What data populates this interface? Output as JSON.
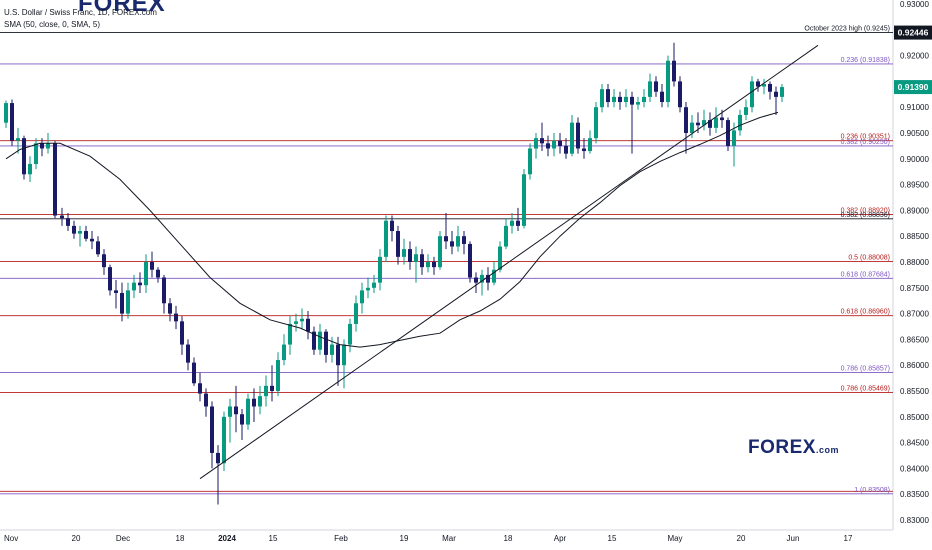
{
  "header": {
    "symbol_line": "U.S. Dollar / Swiss Franc, 1D, FOREX.com",
    "indicator_line": "SMA (50, close, 0, SMA, 5)"
  },
  "logo": {
    "brand": "FOREX",
    "suffix": ".com"
  },
  "colors": {
    "up": "#089981",
    "down": "#1a1a66",
    "price_badge": "#089981",
    "high_badge": "#131722"
  },
  "chart_data": {
    "type": "candlestick",
    "symbol": "USD/CHF",
    "timeframe": "1D",
    "x_tick_labels": [
      "Nov",
      "20",
      "Dec",
      "18",
      "2024",
      "15",
      "Feb",
      "19",
      "Mar",
      "18",
      "Apr",
      "15",
      "May",
      "20",
      "Jun",
      "17"
    ],
    "y_tick_labels": [
      "0.93000",
      "0.92000",
      "0.91000",
      "0.90500",
      "0.90000",
      "0.89500",
      "0.89000",
      "0.88500",
      "0.88000",
      "0.87500",
      "0.87000",
      "0.86500",
      "0.86000",
      "0.85500",
      "0.85000",
      "0.84500",
      "0.84000",
      "0.83500",
      "0.83000"
    ],
    "ylim": [
      0.8295,
      0.9317
    ],
    "y_ticks": [
      0.93,
      0.92,
      0.91,
      0.905,
      0.9,
      0.895,
      0.89,
      0.885,
      0.88,
      0.875,
      0.87,
      0.865,
      0.86,
      0.855,
      0.85,
      0.845,
      0.84,
      0.835,
      0.83
    ],
    "current_price": "0.91390",
    "current_price_value": 0.9139,
    "high_badge": "0.92446",
    "high_badge_value": 0.92446,
    "levels": [
      {
        "label": "October 2023 high (0.9245)",
        "value": 0.92446,
        "color": "#131722"
      },
      {
        "label": "0.236 (0.91838)",
        "value": 0.91838,
        "color": "#7e57c2"
      },
      {
        "label": "0.236 (0.90351)",
        "value": 0.90351,
        "color": "#b71c1c"
      },
      {
        "label": "0.382 (0.90250)",
        "value": 0.9025,
        "color": "#7e57c2"
      },
      {
        "label": "0.382 (0.88920)",
        "value": 0.8892,
        "color": "#b71c1c"
      },
      {
        "label": "0.382 (0.88836)",
        "value": 0.88836,
        "color": "#131722"
      },
      {
        "label": "0.5 (0.88008)",
        "value": 0.88008,
        "color": "#b71c1c"
      },
      {
        "label": "0.618 (0.87684)",
        "value": 0.87684,
        "color": "#7e57c2"
      },
      {
        "label": "0.618 (0.86960)",
        "value": 0.8696,
        "color": "#b71c1c"
      },
      {
        "label": "0.786 (0.85857)",
        "value": 0.85857,
        "color": "#7e57c2"
      },
      {
        "label": "0.786 (0.85469)",
        "value": 0.85469,
        "color": "#b71c1c"
      },
      {
        "label": "1 (0.83508)",
        "value": 0.83508,
        "color": "#7e57c2"
      },
      {
        "label": "",
        "value": 0.83555,
        "color": "#b71c1c"
      }
    ],
    "sma_50": [
      [
        6,
        0.9
      ],
      [
        20,
        0.9018
      ],
      [
        40,
        0.903
      ],
      [
        60,
        0.903
      ],
      [
        90,
        0.9005
      ],
      [
        120,
        0.896
      ],
      [
        150,
        0.89
      ],
      [
        180,
        0.8835
      ],
      [
        210,
        0.877
      ],
      [
        240,
        0.872
      ],
      [
        270,
        0.8688
      ],
      [
        300,
        0.8672
      ],
      [
        320,
        0.8655
      ],
      [
        340,
        0.864
      ],
      [
        360,
        0.8635
      ],
      [
        380,
        0.864
      ],
      [
        400,
        0.8648
      ],
      [
        420,
        0.8656
      ],
      [
        440,
        0.8662
      ],
      [
        460,
        0.8688
      ],
      [
        480,
        0.8705
      ],
      [
        500,
        0.8728
      ],
      [
        520,
        0.8762
      ],
      [
        540,
        0.881
      ],
      [
        560,
        0.885
      ],
      [
        580,
        0.8885
      ],
      [
        600,
        0.8915
      ],
      [
        620,
        0.8948
      ],
      [
        640,
        0.8975
      ],
      [
        660,
        0.8995
      ],
      [
        680,
        0.9012
      ],
      [
        700,
        0.9028
      ],
      [
        720,
        0.9045
      ],
      [
        740,
        0.9065
      ],
      [
        760,
        0.908
      ],
      [
        778,
        0.909
      ]
    ],
    "trendline": [
      [
        200,
        0.838
      ],
      [
        818,
        0.922
      ]
    ],
    "candles": [
      [
        6,
        0.907,
        0.9108,
        0.9113,
        0.906
      ],
      [
        12,
        0.9108,
        0.9035,
        0.9115,
        0.9025
      ],
      [
        18,
        0.9035,
        0.904,
        0.906,
        0.901
      ],
      [
        24,
        0.904,
        0.897,
        0.9045,
        0.896
      ],
      [
        30,
        0.897,
        0.899,
        0.9005,
        0.8955
      ],
      [
        36,
        0.899,
        0.903,
        0.904,
        0.898
      ],
      [
        42,
        0.903,
        0.902,
        0.904,
        0.9005
      ],
      [
        48,
        0.902,
        0.903,
        0.905,
        0.901
      ],
      [
        55,
        0.903,
        0.889,
        0.9035,
        0.8885
      ],
      [
        62,
        0.889,
        0.8885,
        0.8905,
        0.887
      ],
      [
        68,
        0.8885,
        0.887,
        0.8895,
        0.886
      ],
      [
        74,
        0.887,
        0.8855,
        0.888,
        0.8845
      ],
      [
        80,
        0.8855,
        0.886,
        0.887,
        0.883
      ],
      [
        86,
        0.886,
        0.8845,
        0.887,
        0.884
      ],
      [
        92,
        0.8845,
        0.884,
        0.886,
        0.8825
      ],
      [
        98,
        0.884,
        0.8815,
        0.885,
        0.881
      ],
      [
        104,
        0.8815,
        0.879,
        0.8825,
        0.8775
      ],
      [
        110,
        0.879,
        0.8745,
        0.8795,
        0.8735
      ],
      [
        116,
        0.8745,
        0.874,
        0.8765,
        0.871
      ],
      [
        122,
        0.874,
        0.87,
        0.876,
        0.8685
      ],
      [
        128,
        0.87,
        0.8745,
        0.876,
        0.869
      ],
      [
        134,
        0.8745,
        0.876,
        0.8775,
        0.873
      ],
      [
        140,
        0.876,
        0.8755,
        0.878,
        0.874
      ],
      [
        146,
        0.8755,
        0.88,
        0.8815,
        0.874
      ],
      [
        152,
        0.88,
        0.8785,
        0.882,
        0.877
      ],
      [
        158,
        0.8785,
        0.877,
        0.879,
        0.876
      ],
      [
        164,
        0.877,
        0.872,
        0.8775,
        0.87
      ],
      [
        170,
        0.872,
        0.87,
        0.873,
        0.8685
      ],
      [
        176,
        0.87,
        0.8685,
        0.8715,
        0.867
      ],
      [
        182,
        0.8685,
        0.864,
        0.8695,
        0.862
      ],
      [
        188,
        0.864,
        0.8605,
        0.865,
        0.859
      ],
      [
        194,
        0.8605,
        0.8565,
        0.8615,
        0.856
      ],
      [
        200,
        0.8565,
        0.8545,
        0.8585,
        0.853
      ],
      [
        206,
        0.8545,
        0.852,
        0.8555,
        0.85
      ],
      [
        212,
        0.852,
        0.843,
        0.853,
        0.84
      ],
      [
        218,
        0.843,
        0.841,
        0.8445,
        0.833
      ],
      [
        224,
        0.841,
        0.85,
        0.851,
        0.8395
      ],
      [
        230,
        0.85,
        0.852,
        0.8535,
        0.845
      ],
      [
        236,
        0.852,
        0.8505,
        0.856,
        0.847
      ],
      [
        242,
        0.8505,
        0.8485,
        0.8515,
        0.8455
      ],
      [
        248,
        0.8485,
        0.8535,
        0.8545,
        0.8475
      ],
      [
        254,
        0.8535,
        0.852,
        0.8555,
        0.849
      ],
      [
        260,
        0.852,
        0.854,
        0.856,
        0.8505
      ],
      [
        266,
        0.854,
        0.856,
        0.858,
        0.852
      ],
      [
        272,
        0.856,
        0.855,
        0.86,
        0.853
      ],
      [
        278,
        0.855,
        0.861,
        0.8625,
        0.854
      ],
      [
        284,
        0.861,
        0.864,
        0.866,
        0.86
      ],
      [
        290,
        0.864,
        0.868,
        0.8695,
        0.862
      ],
      [
        296,
        0.868,
        0.8685,
        0.87,
        0.8665
      ],
      [
        302,
        0.8685,
        0.869,
        0.871,
        0.867
      ],
      [
        308,
        0.869,
        0.8665,
        0.8705,
        0.865
      ],
      [
        314,
        0.8665,
        0.863,
        0.8675,
        0.862
      ],
      [
        320,
        0.863,
        0.8665,
        0.868,
        0.862
      ],
      [
        326,
        0.8665,
        0.862,
        0.867,
        0.8605
      ],
      [
        332,
        0.862,
        0.864,
        0.8655,
        0.8605
      ],
      [
        338,
        0.864,
        0.86,
        0.8655,
        0.856
      ],
      [
        344,
        0.86,
        0.864,
        0.865,
        0.8555
      ],
      [
        350,
        0.864,
        0.868,
        0.869,
        0.8625
      ],
      [
        356,
        0.868,
        0.872,
        0.8735,
        0.8665
      ],
      [
        362,
        0.872,
        0.8745,
        0.876,
        0.87
      ],
      [
        368,
        0.8745,
        0.875,
        0.877,
        0.873
      ],
      [
        374,
        0.875,
        0.876,
        0.8775,
        0.874
      ],
      [
        380,
        0.876,
        0.881,
        0.8825,
        0.8745
      ],
      [
        386,
        0.881,
        0.888,
        0.889,
        0.88
      ],
      [
        392,
        0.888,
        0.886,
        0.889,
        0.884
      ],
      [
        398,
        0.886,
        0.881,
        0.887,
        0.8795
      ],
      [
        404,
        0.881,
        0.8825,
        0.8845,
        0.8795
      ],
      [
        410,
        0.8825,
        0.88,
        0.884,
        0.8785
      ],
      [
        416,
        0.88,
        0.8815,
        0.883,
        0.876
      ],
      [
        422,
        0.8815,
        0.879,
        0.8825,
        0.8775
      ],
      [
        428,
        0.879,
        0.88,
        0.8815,
        0.878
      ],
      [
        434,
        0.88,
        0.879,
        0.881,
        0.8775
      ],
      [
        440,
        0.879,
        0.885,
        0.886,
        0.8785
      ],
      [
        446,
        0.885,
        0.884,
        0.8895,
        0.8825
      ],
      [
        452,
        0.884,
        0.883,
        0.886,
        0.8815
      ],
      [
        458,
        0.883,
        0.885,
        0.887,
        0.882
      ],
      [
        464,
        0.885,
        0.8835,
        0.886,
        0.8815
      ],
      [
        470,
        0.8835,
        0.877,
        0.884,
        0.876
      ],
      [
        476,
        0.877,
        0.876,
        0.878,
        0.874
      ],
      [
        482,
        0.876,
        0.8775,
        0.8785,
        0.8735
      ],
      [
        488,
        0.8775,
        0.876,
        0.879,
        0.8745
      ],
      [
        494,
        0.876,
        0.8785,
        0.88,
        0.8755
      ],
      [
        500,
        0.8785,
        0.883,
        0.884,
        0.878
      ],
      [
        506,
        0.883,
        0.887,
        0.8885,
        0.8825
      ],
      [
        512,
        0.887,
        0.888,
        0.8895,
        0.8855
      ],
      [
        518,
        0.888,
        0.887,
        0.8905,
        0.886
      ],
      [
        524,
        0.887,
        0.897,
        0.898,
        0.8865
      ],
      [
        530,
        0.897,
        0.902,
        0.903,
        0.896
      ],
      [
        536,
        0.902,
        0.904,
        0.905,
        0.9
      ],
      [
        542,
        0.904,
        0.903,
        0.907,
        0.9015
      ],
      [
        548,
        0.903,
        0.902,
        0.9045,
        0.9005
      ],
      [
        554,
        0.902,
        0.9035,
        0.905,
        0.9005
      ],
      [
        560,
        0.9035,
        0.9025,
        0.905,
        0.901
      ],
      [
        566,
        0.9025,
        0.901,
        0.904,
        0.9
      ],
      [
        572,
        0.901,
        0.907,
        0.9085,
        0.9005
      ],
      [
        578,
        0.907,
        0.902,
        0.908,
        0.901
      ],
      [
        584,
        0.902,
        0.9015,
        0.904,
        0.9
      ],
      [
        590,
        0.9015,
        0.904,
        0.9055,
        0.901
      ],
      [
        596,
        0.904,
        0.91,
        0.911,
        0.903
      ],
      [
        602,
        0.91,
        0.9135,
        0.9145,
        0.909
      ],
      [
        608,
        0.9135,
        0.911,
        0.9145,
        0.91
      ],
      [
        614,
        0.911,
        0.912,
        0.9135,
        0.91
      ],
      [
        620,
        0.912,
        0.911,
        0.913,
        0.9095
      ],
      [
        626,
        0.911,
        0.912,
        0.9135,
        0.91
      ],
      [
        632,
        0.912,
        0.9105,
        0.913,
        0.901
      ],
      [
        638,
        0.9105,
        0.911,
        0.912,
        0.9095
      ],
      [
        644,
        0.911,
        0.912,
        0.9135,
        0.91
      ],
      [
        650,
        0.912,
        0.915,
        0.9165,
        0.911
      ],
      [
        656,
        0.915,
        0.913,
        0.916,
        0.912
      ],
      [
        662,
        0.913,
        0.911,
        0.9145,
        0.91
      ],
      [
        668,
        0.911,
        0.919,
        0.92,
        0.91
      ],
      [
        674,
        0.919,
        0.915,
        0.9225,
        0.914
      ],
      [
        680,
        0.915,
        0.91,
        0.916,
        0.909
      ],
      [
        686,
        0.91,
        0.905,
        0.911,
        0.901
      ],
      [
        692,
        0.905,
        0.907,
        0.9085,
        0.904
      ],
      [
        698,
        0.907,
        0.9065,
        0.909,
        0.905
      ],
      [
        704,
        0.9065,
        0.9075,
        0.9095,
        0.9055
      ],
      [
        710,
        0.9075,
        0.906,
        0.909,
        0.9045
      ],
      [
        716,
        0.906,
        0.908,
        0.91,
        0.905
      ],
      [
        722,
        0.908,
        0.9075,
        0.9095,
        0.906
      ],
      [
        728,
        0.9075,
        0.9025,
        0.908,
        0.9015
      ],
      [
        734,
        0.9025,
        0.9055,
        0.907,
        0.8985
      ],
      [
        740,
        0.9055,
        0.9085,
        0.9095,
        0.9045
      ],
      [
        746,
        0.9085,
        0.91,
        0.9115,
        0.9075
      ],
      [
        752,
        0.91,
        0.915,
        0.916,
        0.909
      ],
      [
        758,
        0.915,
        0.914,
        0.9155,
        0.913
      ],
      [
        764,
        0.914,
        0.9145,
        0.9155,
        0.9125
      ],
      [
        770,
        0.9145,
        0.913,
        0.915,
        0.9115
      ],
      [
        776,
        0.913,
        0.912,
        0.914,
        0.9085
      ],
      [
        782,
        0.912,
        0.9139,
        0.9145,
        0.911
      ]
    ]
  }
}
